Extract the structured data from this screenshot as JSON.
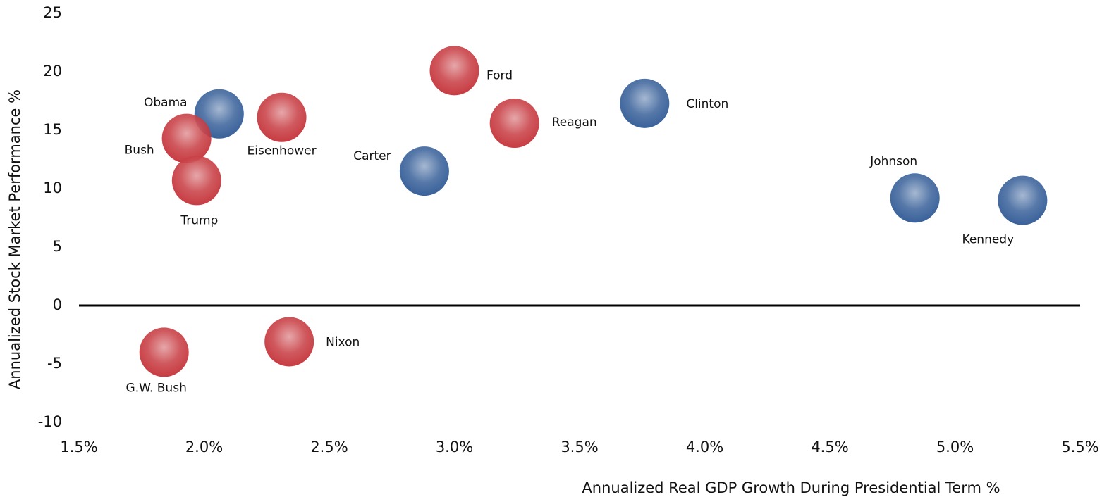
{
  "chart_data": {
    "type": "scatter",
    "x_label": "Annualized Real GDP Growth During Presidential Term %",
    "y_label": "Annualized Stock Market Performance %",
    "xlim": [
      1.5,
      5.5
    ],
    "ylim": [
      -10,
      25
    ],
    "xticks": [
      {
        "value": 1.5,
        "label": "1.5%"
      },
      {
        "value": 2.0,
        "label": "2.0%"
      },
      {
        "value": 2.5,
        "label": "2.5%"
      },
      {
        "value": 3.0,
        "label": "3.0%"
      },
      {
        "value": 3.5,
        "label": "3.5%"
      },
      {
        "value": 4.0,
        "label": "4.0%"
      },
      {
        "value": 4.5,
        "label": "4.5%"
      },
      {
        "value": 5.0,
        "label": "5.0%"
      },
      {
        "value": 5.5,
        "label": "5.5%"
      }
    ],
    "yticks": [
      -10,
      -5,
      0,
      5,
      10,
      15,
      20,
      25
    ],
    "points": [
      {
        "label": "Obama",
        "x": 2.06,
        "y": 16.4,
        "color": "#24508f"
      },
      {
        "label": "Bush",
        "x": 1.93,
        "y": 14.3,
        "color": "#c1272d"
      },
      {
        "label": "Eisenhower",
        "x": 2.31,
        "y": 16.1,
        "color": "#c1272d"
      },
      {
        "label": "Trump",
        "x": 1.97,
        "y": 10.7,
        "color": "#c1272d"
      },
      {
        "label": "Ford",
        "x": 3.0,
        "y": 20.1,
        "color": "#c1272d"
      },
      {
        "label": "Reagan",
        "x": 3.24,
        "y": 15.6,
        "color": "#c1272d"
      },
      {
        "label": "Clinton",
        "x": 3.76,
        "y": 17.3,
        "color": "#24508f"
      },
      {
        "label": "Carter",
        "x": 2.88,
        "y": 11.5,
        "color": "#24508f"
      },
      {
        "label": "Johnson",
        "x": 4.84,
        "y": 9.2,
        "color": "#24508f"
      },
      {
        "label": "Kennedy",
        "x": 5.27,
        "y": 9.0,
        "color": "#24508f"
      },
      {
        "label": "G.W. Bush",
        "x": 1.84,
        "y": -4.0,
        "color": "#c1272d"
      },
      {
        "label": "Nixon",
        "x": 2.34,
        "y": -3.1,
        "color": "#c1272d"
      }
    ]
  }
}
